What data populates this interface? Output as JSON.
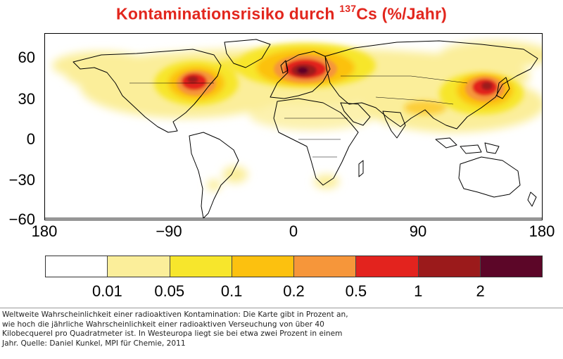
{
  "title": {
    "prefix": "Kontaminationsrisiko durch ",
    "superscript": "137",
    "suffix": "Cs (%/Jahr)",
    "color": "#e2261d"
  },
  "map": {
    "axes": {
      "y_ticks": [
        "60",
        "30",
        "0",
        "−30",
        "−60"
      ],
      "x_ticks": [
        "180",
        "−90",
        "0",
        "90",
        "180"
      ]
    },
    "hotspots": [
      {
        "region": "Western/Central Europe",
        "level": "2"
      },
      {
        "region": "Eastern USA",
        "level": "1"
      },
      {
        "region": "East Asia (Japan/Korea/China)",
        "level": "1"
      }
    ]
  },
  "colorbar": {
    "colors": [
      "#ffffff",
      "#fbee9a",
      "#f7e62c",
      "#fcc10f",
      "#f6963a",
      "#e3231e",
      "#9b1a1b",
      "#5c0628"
    ],
    "labels": [
      "0.01",
      "0.05",
      "0.1",
      "0.2",
      "0.5",
      "1",
      "2"
    ]
  },
  "caption": {
    "lines": [
      "Weltweite Wahrscheinlichkeit einer radioaktiven Kontamination: Die Karte gibt in Prozent an,",
      "wie hoch die jährliche Wahrscheinlichkeit einer radioaktiven Verseuchung von über 40",
      "Kilobecquerel pro Quadratmeter ist. In Westeuropa liegt sie bei etwa zwei Prozent in einem",
      "Jahr. Quelle: Daniel Kunkel, MPI für Chemie, 2011"
    ]
  }
}
